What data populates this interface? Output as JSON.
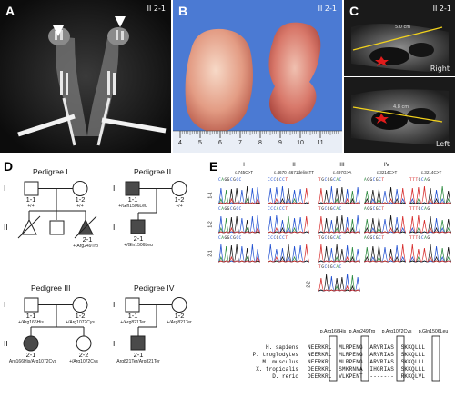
{
  "panels": {
    "A": {
      "label": "A",
      "tag": "II 2-1"
    },
    "B": {
      "label": "B",
      "tag": "II 2-1",
      "ruler_numbers": [
        "4",
        "5",
        "6",
        "7",
        "8",
        "9",
        "10",
        "11"
      ]
    },
    "C": {
      "label": "C",
      "tag": "II 2-1",
      "right": "Right",
      "left": "Left",
      "measure_top": "5.0 cm",
      "measure_bottom": "4.8 cm"
    },
    "D": {
      "label": "D"
    },
    "E": {
      "label": "E"
    }
  },
  "pedigrees": [
    {
      "title": "Pedigree I",
      "gen1": "I",
      "gen2": "II",
      "ind": [
        {
          "id": "1-1",
          "geno": "+/+"
        },
        {
          "id": "1-2",
          "geno": "+/+"
        },
        {
          "id": "2-1",
          "geno": "+/Arg249Trp"
        }
      ]
    },
    {
      "title": "Pedigree II",
      "gen1": "I",
      "gen2": "II",
      "ind": [
        {
          "id": "1-1",
          "geno": "+/Gln1506Leu"
        },
        {
          "id": "1-2",
          "geno": "+/+"
        },
        {
          "id": "2-1",
          "geno": "+/Gln1506Leu"
        }
      ]
    },
    {
      "title": "Pedigree III",
      "gen1": "I",
      "gen2": "II",
      "ind": [
        {
          "id": "1-1",
          "geno": "+/Arg166His"
        },
        {
          "id": "1-2",
          "geno": "+/Arg1072Cys"
        },
        {
          "id": "2-1",
          "geno": "Arg166His/Arg1072Cys"
        },
        {
          "id": "2-2",
          "geno": "+/Arg1072Cys"
        }
      ]
    },
    {
      "title": "Pedigree IV",
      "gen1": "I",
      "gen2": "II",
      "ind": [
        {
          "id": "1-1",
          "geno": "+/Arg821Ter"
        },
        {
          "id": "1-2",
          "geno": "+/Arg821Ter"
        },
        {
          "id": "2-1",
          "geno": "Arg821Ter/Arg821Ter"
        }
      ]
    }
  ],
  "chromatograms": {
    "columns": [
      {
        "roman": "I",
        "variant": "c.745C>T"
      },
      {
        "roman": "II",
        "variant": "c.4670_4671delinsTT"
      },
      {
        "roman": "III",
        "variant": "c.497G>A"
      },
      {
        "roman": "IV",
        "variant": "c.3214C>T"
      },
      {
        "roman": "",
        "variant": "c.3214C>T"
      }
    ],
    "row_labels": [
      "1-1",
      "1-2",
      "2-1",
      "2-2"
    ],
    "sequences": [
      [
        "CAGGCGCC",
        "CCCGCCT",
        "TGCGGCAC",
        "AGGCGCT",
        "TTTGCAG"
      ],
      [
        "CAGGCGCC",
        "CCCACCT",
        "TGCGGCAC",
        "AGGCGCT",
        "TTTGCAG"
      ],
      [
        "CAGGCGCC",
        "CCCGCCT",
        "TGCGGCAC",
        "AGGCGCT",
        "TTTGCAG"
      ],
      [
        "",
        "",
        "TGCGGCAC",
        "",
        ""
      ]
    ]
  },
  "alignment": {
    "variants": [
      "p.Arg166His",
      "p.Arg249Trp",
      "p.Arg1072Cys",
      "p.Gln1506Leu"
    ],
    "species": [
      {
        "name": "H. sapiens",
        "seq": "NEERKRL  MLRPENG  ARVRIAS  SKKQLLL"
      },
      {
        "name": "P. troglodytes",
        "seq": "NEERKRL  MLRPENG  ARVRIAS  SKKQLLL"
      },
      {
        "name": "M. musculus",
        "seq": "NEERKRL  MLRPENG  ARVRIAS  SKKQLLL"
      },
      {
        "name": "X. tropicalis",
        "seq": "DEERKRL  SMKRNNA  IHGRIAS  SKKQLLL"
      },
      {
        "name": "D. rerio",
        "seq": "DEERKRL  VLKPENT  -------  RKKQLVL"
      }
    ]
  },
  "colors": {
    "A": "#2b8a3e",
    "C": "#1f4fd1",
    "G": "#111111",
    "T": "#d62828"
  }
}
